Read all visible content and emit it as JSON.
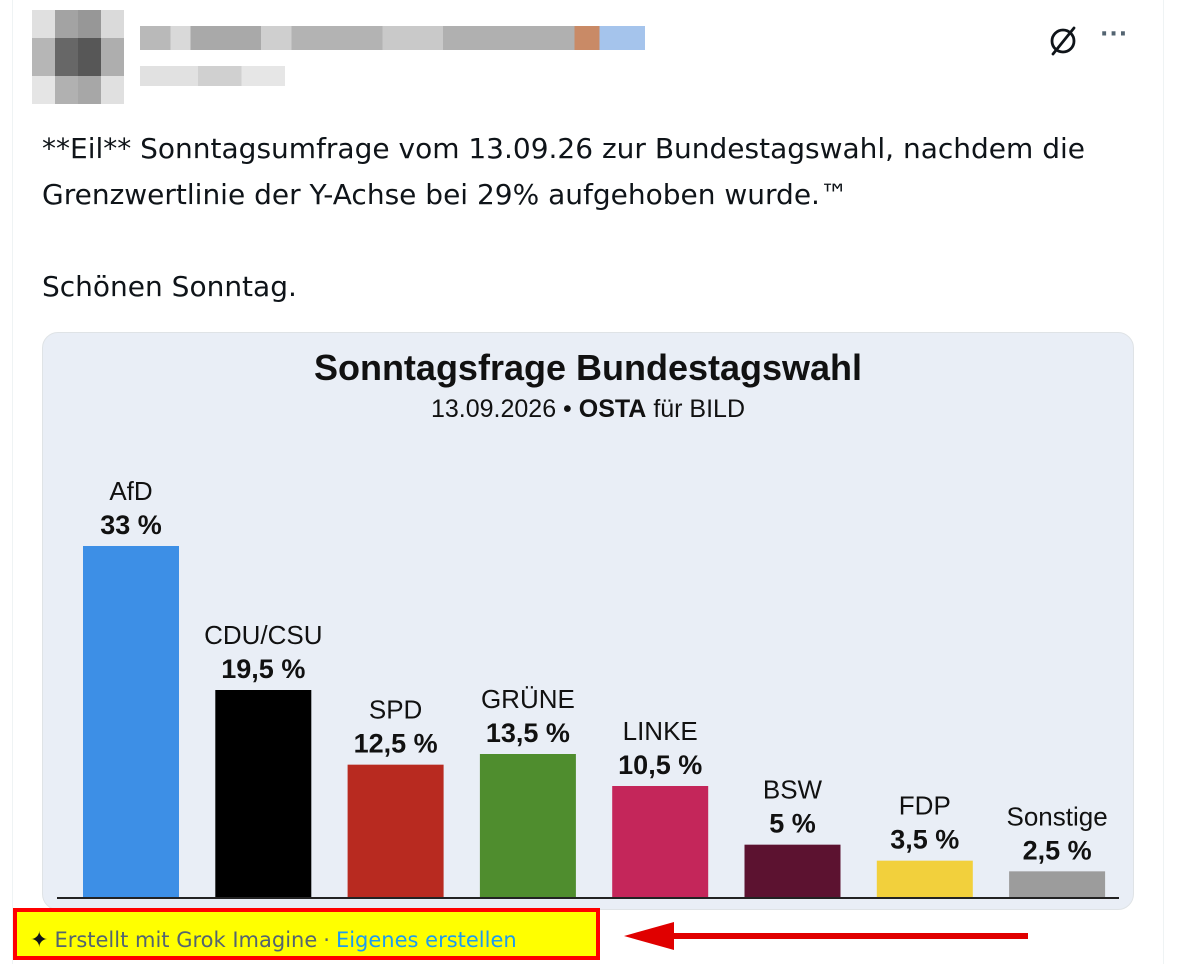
{
  "post": {
    "line1": "**Eil** Sonntagsumfrage vom 13.09.26 zur Bundestagswahl, nachdem die",
    "line2": "Grenzwertlinie der Y-Achse bei 29% aufgehoben wurde.™",
    "line3": "Schönen Sonntag."
  },
  "icons": {
    "grok": "grok-slash-circle-icon",
    "more": "more-options-icon",
    "sparkle": "sparkle-icon"
  },
  "more_label": "···",
  "caption": {
    "sparkle": "✦",
    "created_with": "Erstellt mit Grok Imagine",
    "separator": "·",
    "create_own": "Eigenes erstellen"
  },
  "chart_data": {
    "type": "bar",
    "title": "Sonntagsfrage Bundestagswahl",
    "subtitle_date": "13.09.2026 •",
    "subtitle_institute": "OSTA",
    "subtitle_client": "für BILD",
    "categories": [
      "AfD",
      "CDU/CSU",
      "SPD",
      "GRÜNE",
      "LINKE",
      "BSW",
      "FDP",
      "Sonstige"
    ],
    "values": [
      33,
      19.5,
      12.5,
      13.5,
      10.5,
      5,
      3.5,
      2.5
    ],
    "value_labels": [
      "33 %",
      "19,5 %",
      "12,5 %",
      "13,5 %",
      "10,5 %",
      "5 %",
      "3,5 %",
      "2,5 %"
    ],
    "colors": [
      "#3d8fe6",
      "#000000",
      "#b82a20",
      "#4f8d2e",
      "#c4265a",
      "#5c1230",
      "#f2d03c",
      "#9c9c9c"
    ],
    "ylim": [
      0,
      35
    ],
    "grid": false
  }
}
